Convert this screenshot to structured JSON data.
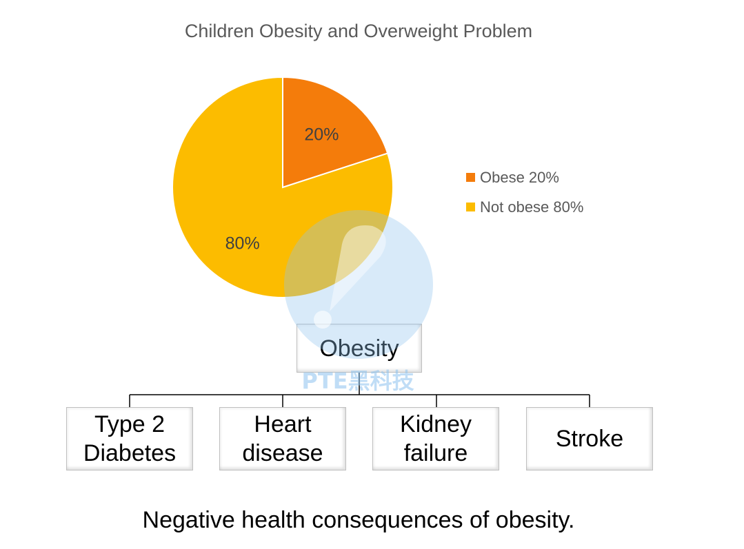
{
  "chart_data": {
    "type": "pie",
    "title": "Children Obesity and Overweight Problem",
    "slices": [
      {
        "name": "Obese",
        "value": 20,
        "label": "20%",
        "legend": "Obese 20%",
        "color": "#f47c0b"
      },
      {
        "name": "Not obese",
        "value": 80,
        "label": "80%",
        "legend": "Not obese 80%",
        "color": "#fcbc00"
      }
    ],
    "legend_position": "right"
  },
  "diagram": {
    "root": "Obesity",
    "children": [
      {
        "line1": "Type 2",
        "line2": "Diabetes"
      },
      {
        "line1": "Heart",
        "line2": "disease"
      },
      {
        "line1": "Kidney",
        "line2": "failure"
      },
      {
        "line1": "Stroke",
        "line2": ""
      }
    ]
  },
  "caption": "Negative health consequences of obesity.",
  "watermark": {
    "text": "PTE黑科技",
    "color": "#8ec3ef"
  }
}
